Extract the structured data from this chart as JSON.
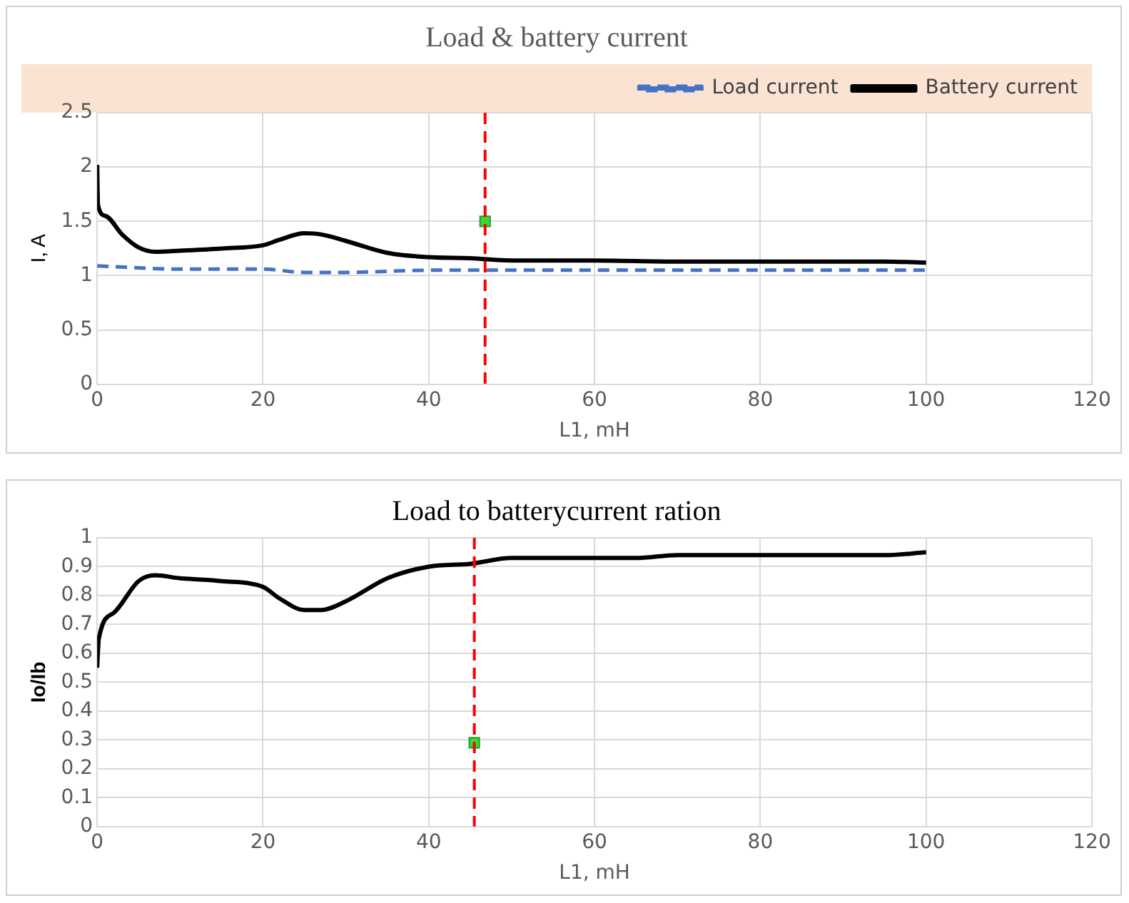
{
  "chart_data": [
    {
      "type": "line",
      "title": "Load & battery current",
      "xlabel": "L1, mH",
      "ylabel": "I, A",
      "xlim": [
        0,
        120
      ],
      "xticks": [
        0,
        20,
        40,
        60,
        80,
        100,
        120
      ],
      "ylim": [
        0,
        2.5
      ],
      "yticks": [
        0,
        0.5,
        1,
        1.5,
        2,
        2.5
      ],
      "grid": true,
      "legend": "top right",
      "marker": "none",
      "series": [
        {
          "name": "Load current",
          "color": "#4472c4",
          "line_style": "dashed",
          "x": [
            0,
            10,
            20,
            25,
            30,
            40,
            50,
            100
          ],
          "values": [
            1.09,
            1.06,
            1.06,
            1.03,
            1.03,
            1.05,
            1.05,
            1.05
          ]
        },
        {
          "name": "Battery current",
          "color": "#000000",
          "line_style": "solid",
          "x": [
            0,
            0.1,
            1,
            3,
            5,
            7,
            10,
            15,
            20,
            22,
            25,
            27,
            30,
            35,
            40,
            45,
            50,
            60,
            70,
            80,
            90,
            95,
            100
          ],
          "values": [
            2.02,
            1.65,
            1.55,
            1.38,
            1.26,
            1.22,
            1.23,
            1.25,
            1.28,
            1.33,
            1.39,
            1.38,
            1.32,
            1.21,
            1.17,
            1.16,
            1.14,
            1.14,
            1.13,
            1.13,
            1.13,
            1.13,
            1.12
          ]
        },
        {
          "type": "scatter",
          "marker": "square",
          "color": "#33dd33",
          "x": [
            46.8
          ],
          "values": [
            1.5
          ]
        }
      ],
      "ref_lines": [
        {
          "axis": "x",
          "value": 46.8,
          "color": "#ff0000",
          "line_style": "dashed"
        }
      ]
    },
    {
      "type": "line",
      "title": "Load to batterycurrent ration",
      "xlabel": "L1, mH",
      "ylabel": "Io/Ib",
      "xlim": [
        0,
        120
      ],
      "xticks": [
        0,
        20,
        40,
        60,
        80,
        100,
        120
      ],
      "ylim": [
        0,
        1
      ],
      "yticks": [
        0,
        0.1,
        0.2,
        0.3,
        0.4,
        0.5,
        0.6,
        0.7,
        0.8,
        0.9,
        1
      ],
      "grid": true,
      "marker": "none",
      "series": [
        {
          "color": "#000000",
          "line_style": "solid",
          "x": [
            0,
            0.2,
            2,
            5,
            7,
            10,
            15,
            20,
            22,
            25,
            27,
            30,
            35,
            40,
            45,
            50,
            60,
            65,
            70,
            80,
            95,
            100
          ],
          "values": [
            0.55,
            0.65,
            0.74,
            0.85,
            0.87,
            0.86,
            0.85,
            0.83,
            0.79,
            0.75,
            0.75,
            0.78,
            0.86,
            0.9,
            0.91,
            0.93,
            0.93,
            0.93,
            0.94,
            0.94,
            0.94,
            0.95
          ]
        },
        {
          "type": "scatter",
          "marker": "square",
          "color": "#33dd33",
          "x": [
            45.5
          ],
          "values": [
            0.29
          ]
        }
      ],
      "ref_lines": [
        {
          "axis": "x",
          "value": 45.5,
          "color": "#ff0000",
          "line_style": "dashed"
        }
      ]
    }
  ]
}
